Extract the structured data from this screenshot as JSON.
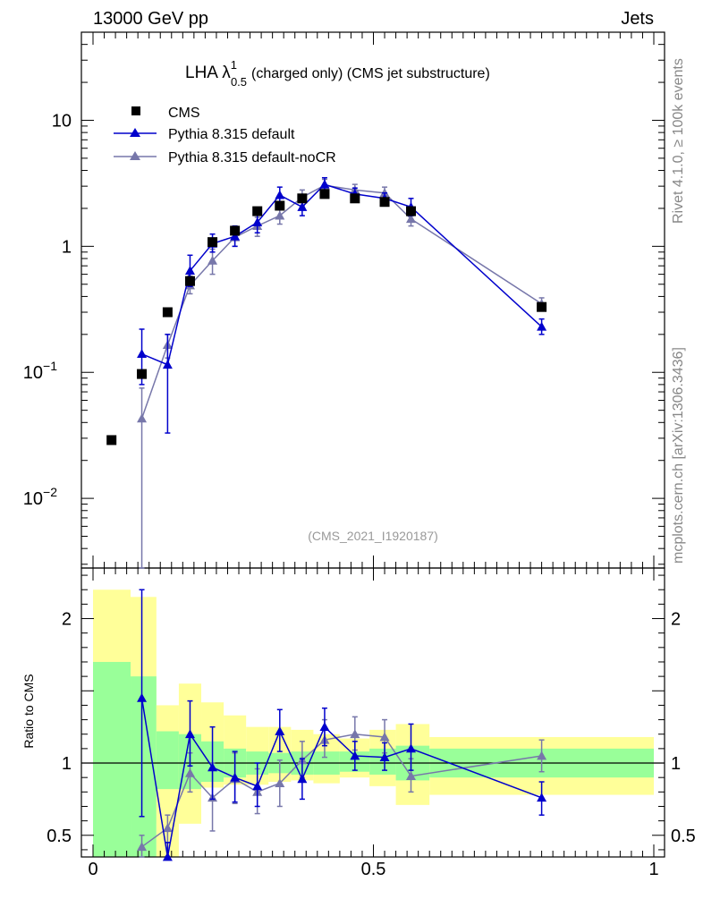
{
  "header": {
    "left": "13000 GeV pp",
    "right": "Jets"
  },
  "side": {
    "rivet": "Rivet 4.1.0, ≥ 100k events",
    "mcplots": "mcplots.cern.ch [arXiv:1306.3436]"
  },
  "title": {
    "main": "LHA λ",
    "sup": "1",
    "sub": "0.5",
    "rest": "(charged only) (CMS jet substructure)"
  },
  "watermark": "(CMS_2021_I1920187)",
  "colors": {
    "data": "#000000",
    "mc1": "#0000cc",
    "mc2": "#7777aa",
    "band_inner": "#99ff99",
    "band_outer": "#ffff99"
  },
  "chart_data": [
    {
      "type": "scatter",
      "name": "main",
      "yscale": "log",
      "xlim": [
        0,
        1
      ],
      "ylim": [
        0.0028,
        50
      ],
      "yticks": [
        {
          "v": 0.01,
          "base": "10",
          "exp": "−2"
        },
        {
          "v": 0.1,
          "base": "10",
          "exp": "−1"
        },
        {
          "v": 1,
          "base": "1",
          "exp": ""
        },
        {
          "v": 10,
          "base": "10",
          "exp": ""
        }
      ],
      "legend": [
        {
          "label": "CMS",
          "key": "data"
        },
        {
          "label": "Pythia 8.315 default",
          "key": "mc1"
        },
        {
          "label": "Pythia 8.315 default-noCR",
          "key": "mc2"
        }
      ],
      "data": {
        "name": "CMS",
        "x": [
          0.033,
          0.087,
          0.133,
          0.173,
          0.213,
          0.253,
          0.293,
          0.333,
          0.373,
          0.413,
          0.467,
          0.52,
          0.567,
          0.8
        ],
        "y": [
          0.029,
          0.097,
          0.3,
          0.53,
          1.08,
          1.33,
          1.9,
          2.1,
          2.4,
          2.6,
          2.4,
          2.25,
          1.9,
          0.33
        ]
      },
      "mc1": {
        "name": "Pythia 8.315 default",
        "x": [
          0.087,
          0.133,
          0.173,
          0.213,
          0.253,
          0.293,
          0.333,
          0.373,
          0.413,
          0.467,
          0.52,
          0.567,
          0.8
        ],
        "y": [
          0.14,
          0.115,
          0.64,
          1.05,
          1.2,
          1.55,
          2.55,
          2.05,
          3.1,
          2.6,
          2.4,
          2.05,
          0.23
        ],
        "ylo": [
          0.08,
          0.033,
          0.48,
          0.9,
          1.0,
          1.28,
          2.2,
          1.75,
          2.7,
          2.35,
          2.15,
          1.75,
          0.2
        ],
        "yhi": [
          0.22,
          0.2,
          0.85,
          1.25,
          1.45,
          1.8,
          2.95,
          2.4,
          3.5,
          2.9,
          2.65,
          2.4,
          0.265
        ]
      },
      "mc2": {
        "name": "Pythia 8.315 default-noCR",
        "x": [
          0.087,
          0.133,
          0.173,
          0.213,
          0.253,
          0.293,
          0.333,
          0.373,
          0.413,
          0.467,
          0.52,
          0.567,
          0.8
        ],
        "y": [
          0.043,
          0.165,
          0.49,
          0.77,
          1.18,
          1.45,
          1.75,
          2.45,
          3.05,
          2.8,
          2.65,
          1.65,
          0.35
        ],
        "ylo": [
          0.002,
          0.13,
          0.42,
          0.6,
          1.0,
          1.2,
          1.5,
          2.1,
          2.7,
          2.5,
          2.35,
          1.45,
          0.31
        ],
        "yhi": [
          0.075,
          0.2,
          0.58,
          0.95,
          1.4,
          1.7,
          2.05,
          2.8,
          3.4,
          3.1,
          2.95,
          1.9,
          0.39
        ]
      }
    },
    {
      "type": "scatter",
      "name": "ratio",
      "ylabel": "Ratio to CMS",
      "xlim": [
        0,
        1
      ],
      "ylim": [
        0.35,
        2.35
      ],
      "yticks": [
        {
          "v": 0.5,
          "label": "0.5"
        },
        {
          "v": 1,
          "label": "1"
        },
        {
          "v": 2,
          "label": "2"
        }
      ],
      "xticks": [
        {
          "v": 0,
          "label": "0"
        },
        {
          "v": 0.5,
          "label": "0.5"
        },
        {
          "v": 1,
          "label": "1"
        }
      ],
      "bands": [
        {
          "x0": 0.0,
          "x1": 0.067,
          "in": [
            0.35,
            1.7
          ],
          "out": [
            0.35,
            2.2
          ]
        },
        {
          "x0": 0.067,
          "x1": 0.113,
          "in": [
            0.35,
            1.6
          ],
          "out": [
            0.58,
            2.15
          ]
        },
        {
          "x0": 0.113,
          "x1": 0.153,
          "in": [
            0.82,
            1.22
          ],
          "out": [
            0.35,
            1.4
          ]
        },
        {
          "x0": 0.153,
          "x1": 0.193,
          "in": [
            0.82,
            1.2
          ],
          "out": [
            0.58,
            1.55
          ]
        },
        {
          "x0": 0.193,
          "x1": 0.233,
          "in": [
            0.87,
            1.15
          ],
          "out": [
            0.83,
            1.42
          ]
        },
        {
          "x0": 0.233,
          "x1": 0.273,
          "in": [
            0.9,
            1.1
          ],
          "out": [
            0.85,
            1.33
          ]
        },
        {
          "x0": 0.273,
          "x1": 0.313,
          "in": [
            0.92,
            1.08
          ],
          "out": [
            0.85,
            1.25
          ]
        },
        {
          "x0": 0.313,
          "x1": 0.353,
          "in": [
            0.93,
            1.07
          ],
          "out": [
            0.87,
            1.25
          ]
        },
        {
          "x0": 0.353,
          "x1": 0.393,
          "in": [
            0.92,
            1.08
          ],
          "out": [
            0.88,
            1.23
          ]
        },
        {
          "x0": 0.393,
          "x1": 0.44,
          "in": [
            0.92,
            1.08
          ],
          "out": [
            0.86,
            1.2
          ]
        },
        {
          "x0": 0.44,
          "x1": 0.493,
          "in": [
            0.94,
            1.08
          ],
          "out": [
            0.9,
            1.17
          ]
        },
        {
          "x0": 0.493,
          "x1": 0.54,
          "in": [
            0.92,
            1.1
          ],
          "out": [
            0.84,
            1.23
          ]
        },
        {
          "x0": 0.54,
          "x1": 0.6,
          "in": [
            0.88,
            1.12
          ],
          "out": [
            0.71,
            1.27
          ]
        },
        {
          "x0": 0.6,
          "x1": 1.0,
          "in": [
            0.9,
            1.1
          ],
          "out": [
            0.78,
            1.18
          ]
        }
      ],
      "mc1": {
        "x": [
          0.087,
          0.133,
          0.173,
          0.213,
          0.253,
          0.293,
          0.333,
          0.373,
          0.413,
          0.467,
          0.52,
          0.567,
          0.8
        ],
        "y": [
          1.45,
          0.3,
          1.2,
          0.97,
          0.9,
          0.84,
          1.22,
          0.89,
          1.25,
          1.05,
          1.04,
          1.1,
          0.76
        ],
        "ylo": [
          0.63,
          0.2,
          0.98,
          0.75,
          0.73,
          0.7,
          1.08,
          0.75,
          1.12,
          0.95,
          0.95,
          0.95,
          0.64
        ],
        "yhi": [
          2.2,
          0.45,
          1.43,
          1.25,
          1.08,
          1.0,
          1.37,
          1.03,
          1.38,
          1.15,
          1.14,
          1.27,
          0.87
        ]
      },
      "mc2": {
        "x": [
          0.087,
          0.133,
          0.173,
          0.213,
          0.253,
          0.293,
          0.333,
          0.373,
          0.413,
          0.467,
          0.52,
          0.567,
          0.8
        ],
        "y": [
          0.42,
          0.55,
          0.93,
          0.76,
          0.89,
          0.8,
          0.86,
          1.02,
          1.16,
          1.2,
          1.18,
          0.91,
          1.05
        ],
        "ylo": [
          0.35,
          0.45,
          0.8,
          0.53,
          0.72,
          0.65,
          0.7,
          0.9,
          1.04,
          1.09,
          1.07,
          0.8,
          0.94
        ],
        "yhi": [
          0.5,
          0.64,
          1.07,
          1.0,
          1.07,
          0.96,
          1.02,
          1.15,
          1.3,
          1.32,
          1.3,
          1.03,
          1.16
        ]
      }
    }
  ]
}
